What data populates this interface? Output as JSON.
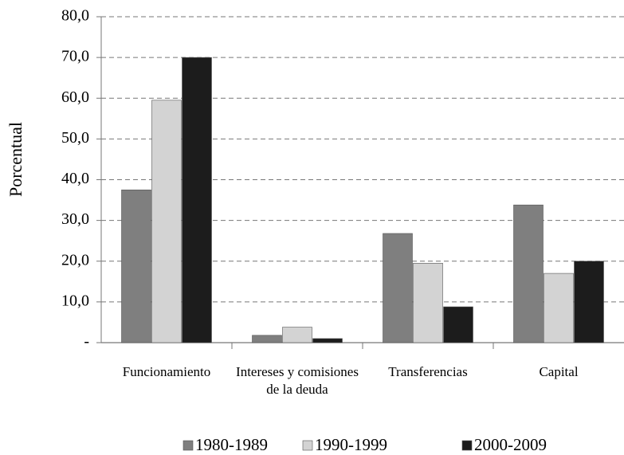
{
  "chart_data": {
    "type": "bar",
    "y_label": "Porcentual",
    "categories": [
      "Funcionamiento",
      "Intereses y comisiones de la deuda",
      "Transferencias",
      "Capital"
    ],
    "series": [
      {
        "name": "1980-1989",
        "color": "#7f7f7f",
        "values": [
          37.5,
          1.8,
          26.8,
          33.8
        ]
      },
      {
        "name": "1990-1999",
        "color": "#d3d3d3",
        "values": [
          59.5,
          3.8,
          19.5,
          17.0
        ]
      },
      {
        "name": "2000-2009",
        "color": "#1c1c1c",
        "values": [
          70.0,
          1.0,
          8.8,
          20.0
        ]
      }
    ],
    "ylim": [
      0,
      80
    ],
    "yticks": [
      {
        "value": 0,
        "label": "-"
      },
      {
        "value": 10,
        "label": "10,0"
      },
      {
        "value": 20,
        "label": "20,0"
      },
      {
        "value": 30,
        "label": "30,0"
      },
      {
        "value": 40,
        "label": "40,0"
      },
      {
        "value": 50,
        "label": "50,0"
      },
      {
        "value": 60,
        "label": "60,0"
      },
      {
        "value": 70,
        "label": "70,0"
      },
      {
        "value": 80,
        "label": "80,0"
      }
    ],
    "grid": true,
    "legend": "bottom"
  }
}
